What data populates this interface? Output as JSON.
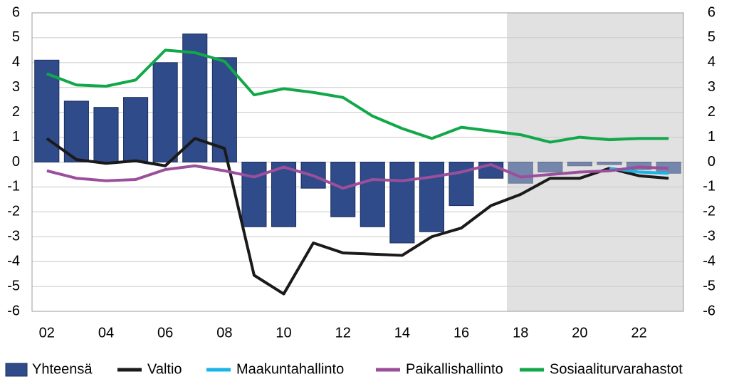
{
  "chart_data": {
    "type": "bar_line",
    "categories": [
      "02",
      null,
      "04",
      null,
      "06",
      null,
      "08",
      null,
      "10",
      null,
      "12",
      null,
      "14",
      null,
      "16",
      null,
      "18",
      null,
      "20",
      null,
      "22",
      null
    ],
    "series": [
      {
        "name": "Yhteensä",
        "type": "bar",
        "color": "#2f4b8a",
        "values": [
          4.1,
          2.45,
          2.2,
          2.6,
          4.0,
          5.15,
          4.2,
          -2.6,
          -2.6,
          -1.05,
          -2.2,
          -2.6,
          -3.25,
          -2.8,
          -1.75,
          -0.65,
          -0.85,
          -0.4,
          -0.15,
          -0.1,
          -0.3,
          -0.45
        ]
      },
      {
        "name": "Valtio",
        "type": "line",
        "color": "#1a1a1a",
        "values": [
          0.95,
          0.1,
          -0.05,
          0.05,
          -0.15,
          0.95,
          0.55,
          -4.55,
          -5.3,
          -3.25,
          -3.65,
          -3.7,
          -3.75,
          -3.0,
          -2.65,
          -1.75,
          -1.3,
          -0.65,
          -0.65,
          -0.25,
          -0.55,
          -0.65
        ]
      },
      {
        "name": "Maakuntahallinto",
        "type": "line",
        "color": "#1ab4e8",
        "values": [
          null,
          null,
          null,
          null,
          null,
          null,
          null,
          null,
          null,
          null,
          null,
          null,
          null,
          null,
          null,
          null,
          null,
          null,
          null,
          -0.25,
          -0.4,
          -0.45
        ]
      },
      {
        "name": "Paikallishallinto",
        "type": "line",
        "color": "#9b4f9b",
        "values": [
          -0.35,
          -0.65,
          -0.75,
          -0.7,
          -0.3,
          -0.15,
          -0.35,
          -0.6,
          -0.2,
          -0.55,
          -1.05,
          -0.7,
          -0.75,
          -0.6,
          -0.4,
          -0.1,
          -0.6,
          -0.5,
          -0.4,
          -0.35,
          -0.2,
          -0.25
        ]
      },
      {
        "name": "Sosiaaliturvarahastot",
        "type": "line",
        "color": "#12a84a",
        "values": [
          3.55,
          3.1,
          3.05,
          3.3,
          4.5,
          4.4,
          4.05,
          2.7,
          2.95,
          2.8,
          2.6,
          1.85,
          1.35,
          0.95,
          1.4,
          1.25,
          1.1,
          0.8,
          1.0,
          0.9,
          0.95,
          0.95
        ]
      }
    ],
    "ylim": [
      -6,
      6
    ],
    "yticks": [
      -6,
      -5,
      -4,
      -3,
      -2,
      -1,
      0,
      1,
      2,
      3,
      4,
      5,
      6
    ],
    "y2lim": [
      -6,
      6
    ],
    "y2ticks": [
      -6,
      -5,
      -4,
      -3,
      -2,
      -1,
      0,
      1,
      2,
      3,
      4,
      5,
      6
    ],
    "grid": true,
    "legend": "bottom"
  }
}
